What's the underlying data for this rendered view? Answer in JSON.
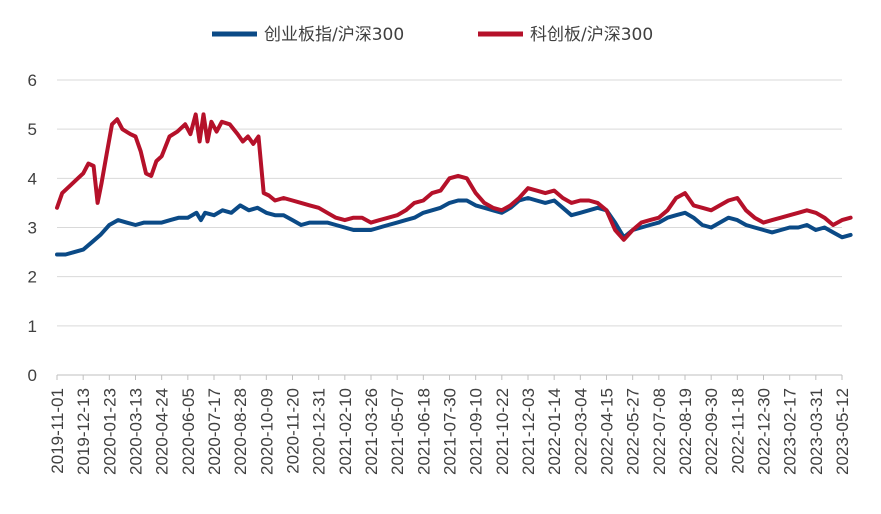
{
  "chart_data": {
    "type": "line",
    "title": "",
    "xlabel": "",
    "ylabel": "",
    "ylim": [
      0,
      6
    ],
    "yticks": [
      0,
      1,
      2,
      3,
      4,
      5,
      6
    ],
    "grid": true,
    "legend_position": "top",
    "x_tick_labels": [
      "2019-11-01",
      "2019-12-13",
      "2020-01-23",
      "2020-03-13",
      "2020-04-24",
      "2020-06-05",
      "2020-07-17",
      "2020-08-28",
      "2020-10-09",
      "2020-11-20",
      "2020-12-31",
      "2021-02-10",
      "2021-03-26",
      "2021-05-07",
      "2021-06-18",
      "2021-07-30",
      "2021-09-10",
      "2021-10-22",
      "2021-12-03",
      "2022-01-14",
      "2022-03-04",
      "2022-04-15",
      "2022-05-27",
      "2022-07-08",
      "2022-08-19",
      "2022-09-30",
      "2022-11-18",
      "2022-12-30",
      "2023-02-17",
      "2023-03-31",
      "2023-05-12"
    ],
    "series": [
      {
        "name": "创业板指/沪深300",
        "color": "#0B4A86",
        "values": [
          [
            0,
            2.45
          ],
          [
            0.33,
            2.45
          ],
          [
            0.66,
            2.5
          ],
          [
            1,
            2.55
          ],
          [
            1.33,
            2.7
          ],
          [
            1.66,
            2.85
          ],
          [
            2,
            3.05
          ],
          [
            2.33,
            3.15
          ],
          [
            2.66,
            3.1
          ],
          [
            3,
            3.05
          ],
          [
            3.33,
            3.1
          ],
          [
            3.66,
            3.1
          ],
          [
            4,
            3.1
          ],
          [
            4.33,
            3.15
          ],
          [
            4.66,
            3.2
          ],
          [
            5,
            3.2
          ],
          [
            5.33,
            3.3
          ],
          [
            5.5,
            3.15
          ],
          [
            5.66,
            3.3
          ],
          [
            6,
            3.25
          ],
          [
            6.33,
            3.35
          ],
          [
            6.66,
            3.3
          ],
          [
            7,
            3.45
          ],
          [
            7.33,
            3.35
          ],
          [
            7.66,
            3.4
          ],
          [
            8,
            3.3
          ],
          [
            8.33,
            3.25
          ],
          [
            8.66,
            3.25
          ],
          [
            9,
            3.15
          ],
          [
            9.33,
            3.05
          ],
          [
            9.66,
            3.1
          ],
          [
            10,
            3.1
          ],
          [
            10.33,
            3.1
          ],
          [
            10.66,
            3.05
          ],
          [
            11,
            3.0
          ],
          [
            11.33,
            2.95
          ],
          [
            11.66,
            2.95
          ],
          [
            12,
            2.95
          ],
          [
            12.33,
            3.0
          ],
          [
            12.66,
            3.05
          ],
          [
            13,
            3.1
          ],
          [
            13.33,
            3.15
          ],
          [
            13.66,
            3.2
          ],
          [
            14,
            3.3
          ],
          [
            14.33,
            3.35
          ],
          [
            14.66,
            3.4
          ],
          [
            15,
            3.5
          ],
          [
            15.33,
            3.55
          ],
          [
            15.66,
            3.55
          ],
          [
            16,
            3.45
          ],
          [
            16.33,
            3.4
          ],
          [
            16.66,
            3.35
          ],
          [
            17,
            3.3
          ],
          [
            17.33,
            3.4
          ],
          [
            17.66,
            3.55
          ],
          [
            18,
            3.6
          ],
          [
            18.33,
            3.55
          ],
          [
            18.66,
            3.5
          ],
          [
            19,
            3.55
          ],
          [
            19.33,
            3.4
          ],
          [
            19.66,
            3.25
          ],
          [
            20,
            3.3
          ],
          [
            20.33,
            3.35
          ],
          [
            20.66,
            3.4
          ],
          [
            21,
            3.35
          ],
          [
            21.33,
            3.1
          ],
          [
            21.66,
            2.8
          ],
          [
            22,
            2.95
          ],
          [
            22.33,
            3.0
          ],
          [
            22.66,
            3.05
          ],
          [
            23,
            3.1
          ],
          [
            23.33,
            3.2
          ],
          [
            23.66,
            3.25
          ],
          [
            24,
            3.3
          ],
          [
            24.33,
            3.2
          ],
          [
            24.66,
            3.05
          ],
          [
            25,
            3.0
          ],
          [
            25.33,
            3.1
          ],
          [
            25.66,
            3.2
          ],
          [
            26,
            3.15
          ],
          [
            26.33,
            3.05
          ],
          [
            26.66,
            3.0
          ],
          [
            27,
            2.95
          ],
          [
            27.33,
            2.9
          ],
          [
            27.66,
            2.95
          ],
          [
            28,
            3.0
          ],
          [
            28.33,
            3.0
          ],
          [
            28.66,
            3.05
          ],
          [
            29,
            2.95
          ],
          [
            29.33,
            3.0
          ],
          [
            29.66,
            2.9
          ],
          [
            30,
            2.8
          ],
          [
            30.33,
            2.85
          ]
        ]
      },
      {
        "name": "科创板/沪深300",
        "color": "#B5112A",
        "values": [
          [
            0,
            3.4
          ],
          [
            0.2,
            3.7
          ],
          [
            0.5,
            3.85
          ],
          [
            0.8,
            4.0
          ],
          [
            1,
            4.1
          ],
          [
            1.2,
            4.3
          ],
          [
            1.4,
            4.25
          ],
          [
            1.55,
            3.5
          ],
          [
            1.7,
            3.9
          ],
          [
            1.9,
            4.5
          ],
          [
            2.1,
            5.1
          ],
          [
            2.3,
            5.2
          ],
          [
            2.5,
            5.0
          ],
          [
            2.8,
            4.9
          ],
          [
            3,
            4.85
          ],
          [
            3.2,
            4.55
          ],
          [
            3.4,
            4.1
          ],
          [
            3.6,
            4.05
          ],
          [
            3.8,
            4.35
          ],
          [
            4,
            4.45
          ],
          [
            4.3,
            4.85
          ],
          [
            4.6,
            4.95
          ],
          [
            4.9,
            5.1
          ],
          [
            5.1,
            4.9
          ],
          [
            5.3,
            5.3
          ],
          [
            5.45,
            4.75
          ],
          [
            5.6,
            5.3
          ],
          [
            5.75,
            4.75
          ],
          [
            5.9,
            5.15
          ],
          [
            6.1,
            4.95
          ],
          [
            6.3,
            5.15
          ],
          [
            6.6,
            5.1
          ],
          [
            6.9,
            4.9
          ],
          [
            7.1,
            4.75
          ],
          [
            7.3,
            4.85
          ],
          [
            7.5,
            4.7
          ],
          [
            7.7,
            4.85
          ],
          [
            7.9,
            3.7
          ],
          [
            8.1,
            3.65
          ],
          [
            8.33,
            3.55
          ],
          [
            8.66,
            3.6
          ],
          [
            9,
            3.55
          ],
          [
            9.33,
            3.5
          ],
          [
            9.66,
            3.45
          ],
          [
            10,
            3.4
          ],
          [
            10.33,
            3.3
          ],
          [
            10.66,
            3.2
          ],
          [
            11,
            3.15
          ],
          [
            11.33,
            3.2
          ],
          [
            11.66,
            3.2
          ],
          [
            12,
            3.1
          ],
          [
            12.33,
            3.15
          ],
          [
            12.66,
            3.2
          ],
          [
            13,
            3.25
          ],
          [
            13.33,
            3.35
          ],
          [
            13.66,
            3.5
          ],
          [
            14,
            3.55
          ],
          [
            14.33,
            3.7
          ],
          [
            14.66,
            3.75
          ],
          [
            15,
            4.0
          ],
          [
            15.33,
            4.05
          ],
          [
            15.66,
            4.0
          ],
          [
            16,
            3.7
          ],
          [
            16.33,
            3.5
          ],
          [
            16.66,
            3.4
          ],
          [
            17,
            3.35
          ],
          [
            17.33,
            3.45
          ],
          [
            17.66,
            3.6
          ],
          [
            18,
            3.8
          ],
          [
            18.33,
            3.75
          ],
          [
            18.66,
            3.7
          ],
          [
            19,
            3.75
          ],
          [
            19.33,
            3.6
          ],
          [
            19.66,
            3.5
          ],
          [
            20,
            3.55
          ],
          [
            20.33,
            3.55
          ],
          [
            20.66,
            3.5
          ],
          [
            21,
            3.35
          ],
          [
            21.33,
            2.95
          ],
          [
            21.66,
            2.75
          ],
          [
            22,
            2.95
          ],
          [
            22.33,
            3.1
          ],
          [
            22.66,
            3.15
          ],
          [
            23,
            3.2
          ],
          [
            23.33,
            3.35
          ],
          [
            23.66,
            3.6
          ],
          [
            24,
            3.7
          ],
          [
            24.33,
            3.45
          ],
          [
            24.66,
            3.4
          ],
          [
            25,
            3.35
          ],
          [
            25.33,
            3.45
          ],
          [
            25.66,
            3.55
          ],
          [
            26,
            3.6
          ],
          [
            26.33,
            3.35
          ],
          [
            26.66,
            3.2
          ],
          [
            27,
            3.1
          ],
          [
            27.33,
            3.15
          ],
          [
            27.66,
            3.2
          ],
          [
            28,
            3.25
          ],
          [
            28.33,
            3.3
          ],
          [
            28.66,
            3.35
          ],
          [
            29,
            3.3
          ],
          [
            29.33,
            3.2
          ],
          [
            29.66,
            3.05
          ],
          [
            30,
            3.15
          ],
          [
            30.33,
            3.2
          ]
        ]
      }
    ]
  }
}
